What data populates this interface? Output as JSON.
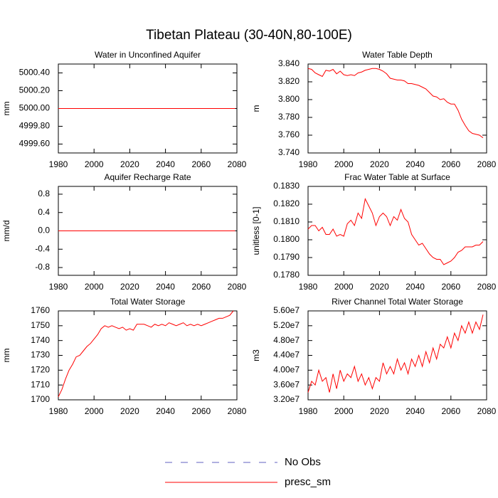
{
  "title": "Tibetan Plateau (30-40N,80-100E)",
  "legend": [
    {
      "name": "No Obs",
      "color": "#6060c0",
      "dash": true
    },
    {
      "name": "presc_sm",
      "color": "#ff0000",
      "dash": false
    }
  ],
  "chart_data": [
    {
      "type": "line",
      "title": "Water in Unconfined Aquifer",
      "y_label": "mm",
      "color": "#ff0000",
      "x": [
        1980,
        2079
      ],
      "values": [
        5000.0,
        5000.0
      ],
      "xlim": [
        1980,
        2080
      ],
      "xticks": [
        1980,
        2000,
        2020,
        2040,
        2060,
        2080
      ],
      "ylim": [
        4999.5,
        5000.5
      ],
      "yticks": [
        {
          "value": 4999.6,
          "label": "4999.60"
        },
        {
          "value": 4999.8,
          "label": "4999.80"
        },
        {
          "value": 5000.0,
          "label": "5000.00"
        },
        {
          "value": 5000.2,
          "label": "5000.20"
        },
        {
          "value": 5000.4,
          "label": "5000.40"
        }
      ]
    },
    {
      "type": "line",
      "title": "Water Table Depth",
      "y_label": "m",
      "color": "#ff0000",
      "x": [
        1980,
        1982,
        1984,
        1986,
        1988,
        1990,
        1992,
        1994,
        1996,
        1998,
        2000,
        2002,
        2004,
        2006,
        2008,
        2010,
        2012,
        2014,
        2016,
        2018,
        2020,
        2022,
        2024,
        2026,
        2028,
        2030,
        2032,
        2034,
        2036,
        2038,
        2040,
        2042,
        2044,
        2046,
        2048,
        2050,
        2052,
        2054,
        2056,
        2058,
        2060,
        2062,
        2064,
        2066,
        2068,
        2070,
        2072,
        2074,
        2076,
        2078
      ],
      "values": [
        3.835,
        3.834,
        3.83,
        3.828,
        3.826,
        3.833,
        3.832,
        3.834,
        3.829,
        3.832,
        3.828,
        3.827,
        3.828,
        3.827,
        3.83,
        3.831,
        3.833,
        3.834,
        3.835,
        3.835,
        3.834,
        3.832,
        3.829,
        3.824,
        3.823,
        3.822,
        3.822,
        3.821,
        3.818,
        3.818,
        3.817,
        3.816,
        3.814,
        3.812,
        3.808,
        3.804,
        3.803,
        3.8,
        3.801,
        3.797,
        3.795,
        3.795,
        3.788,
        3.778,
        3.771,
        3.765,
        3.762,
        3.761,
        3.76,
        3.757
      ],
      "xlim": [
        1980,
        2080
      ],
      "xticks": [
        1980,
        2000,
        2020,
        2040,
        2060,
        2080
      ],
      "ylim": [
        3.74,
        3.84
      ],
      "yticks": [
        {
          "value": 3.74,
          "label": "3.740"
        },
        {
          "value": 3.76,
          "label": "3.760"
        },
        {
          "value": 3.78,
          "label": "3.780"
        },
        {
          "value": 3.8,
          "label": "3.800"
        },
        {
          "value": 3.82,
          "label": "3.820"
        },
        {
          "value": 3.84,
          "label": "3.840"
        }
      ]
    },
    {
      "type": "line",
      "title": "Aquifer Recharge Rate",
      "y_label": "mm/d",
      "color": "#ff0000",
      "x": [
        1980,
        2079
      ],
      "values": [
        0,
        0
      ],
      "xlim": [
        1980,
        2080
      ],
      "xticks": [
        1980,
        2000,
        2020,
        2040,
        2060,
        2080
      ],
      "ylim": [
        -0.97,
        0.97
      ],
      "yticks": [
        -0.8,
        -0.4,
        {
          "value": 0,
          "label": "0.0"
        },
        0.4,
        0.8
      ]
    },
    {
      "type": "line",
      "title": "Frac Water Table at Surface",
      "y_label": "unitless [0-1]",
      "color": "#ff0000",
      "x": [
        1980,
        1982,
        1984,
        1986,
        1988,
        1990,
        1992,
        1994,
        1996,
        1998,
        2000,
        2002,
        2004,
        2006,
        2008,
        2010,
        2012,
        2014,
        2016,
        2018,
        2020,
        2022,
        2024,
        2026,
        2028,
        2030,
        2032,
        2034,
        2036,
        2038,
        2040,
        2042,
        2044,
        2046,
        2048,
        2050,
        2052,
        2054,
        2056,
        2058,
        2060,
        2062,
        2064,
        2066,
        2068,
        2070,
        2072,
        2074,
        2076,
        2078
      ],
      "values": [
        0.1806,
        0.1808,
        0.1808,
        0.1805,
        0.1807,
        0.1803,
        0.1803,
        0.1806,
        0.1802,
        0.1803,
        0.1802,
        0.1809,
        0.1811,
        0.1808,
        0.1815,
        0.1812,
        0.1823,
        0.1819,
        0.1815,
        0.1808,
        0.1813,
        0.1815,
        0.1813,
        0.1808,
        0.1813,
        0.1811,
        0.1817,
        0.1812,
        0.181,
        0.1803,
        0.18,
        0.1797,
        0.1798,
        0.1795,
        0.1792,
        0.179,
        0.1789,
        0.1789,
        0.1786,
        0.1787,
        0.1788,
        0.179,
        0.1793,
        0.1794,
        0.1796,
        0.1796,
        0.1796,
        0.1797,
        0.1797,
        0.1799
      ],
      "xlim": [
        1980,
        2080
      ],
      "xticks": [
        1980,
        2000,
        2020,
        2040,
        2060,
        2080
      ],
      "ylim": [
        0.178,
        0.183
      ],
      "yticks": [
        {
          "value": 0.178,
          "label": "0.1780"
        },
        {
          "value": 0.179,
          "label": "0.1790"
        },
        {
          "value": 0.18,
          "label": "0.1800"
        },
        {
          "value": 0.181,
          "label": "0.1810"
        },
        {
          "value": 0.182,
          "label": "0.1820"
        },
        {
          "value": 0.183,
          "label": "0.1830"
        }
      ]
    },
    {
      "type": "line",
      "title": "Total Water Storage",
      "y_label": "mm",
      "color": "#ff0000",
      "x": [
        1980,
        1982,
        1984,
        1986,
        1988,
        1990,
        1992,
        1994,
        1996,
        1998,
        2000,
        2002,
        2004,
        2006,
        2008,
        2010,
        2012,
        2014,
        2016,
        2018,
        2020,
        2022,
        2024,
        2026,
        2028,
        2030,
        2032,
        2034,
        2036,
        2038,
        2040,
        2042,
        2044,
        2046,
        2048,
        2050,
        2052,
        2054,
        2056,
        2058,
        2060,
        2062,
        2064,
        2066,
        2068,
        2070,
        2072,
        2074,
        2076,
        2078
      ],
      "values": [
        1702,
        1707,
        1714,
        1720,
        1724,
        1729,
        1730,
        1733,
        1736,
        1738,
        1741,
        1744,
        1748,
        1750,
        1749,
        1750,
        1749,
        1748,
        1749,
        1747,
        1748,
        1747,
        1751,
        1751,
        1751,
        1750,
        1749,
        1751,
        1750,
        1751,
        1750,
        1752,
        1751,
        1750,
        1751,
        1752,
        1750,
        1751,
        1750,
        1751,
        1750,
        1751,
        1752,
        1753,
        1754,
        1755,
        1755,
        1756,
        1757,
        1760
      ],
      "xlim": [
        1980,
        2080
      ],
      "xticks": [
        1980,
        2000,
        2020,
        2040,
        2060,
        2080
      ],
      "ylim": [
        1700,
        1760
      ],
      "yticks": [
        1700,
        1710,
        1720,
        1730,
        1740,
        1750,
        1760
      ]
    },
    {
      "type": "line",
      "title": "River Channel Total Water Storage",
      "y_label": "m3",
      "color": "#ff0000",
      "x": [
        1980,
        1982,
        1984,
        1986,
        1988,
        1990,
        1992,
        1994,
        1996,
        1998,
        2000,
        2002,
        2004,
        2006,
        2008,
        2010,
        2012,
        2014,
        2016,
        2018,
        2020,
        2022,
        2024,
        2026,
        2028,
        2030,
        2032,
        2034,
        2036,
        2038,
        2040,
        2042,
        2044,
        2046,
        2048,
        2050,
        2052,
        2054,
        2056,
        2058,
        2060,
        2062,
        2064,
        2066,
        2068,
        2070,
        2072,
        2074,
        2076,
        2078
      ],
      "values": [
        34000000,
        37000000,
        36000000,
        40000000,
        37000000,
        38000000,
        34000000,
        39000000,
        35000000,
        40000000,
        37000000,
        39000000,
        38000000,
        41000000,
        37000000,
        39000000,
        36000000,
        38000000,
        35000000,
        38000000,
        37000000,
        42000000,
        39000000,
        41000000,
        39000000,
        43000000,
        40000000,
        42000000,
        39000000,
        43000000,
        41000000,
        44000000,
        41000000,
        45000000,
        42000000,
        46000000,
        43000000,
        47000000,
        46000000,
        49000000,
        46000000,
        50000000,
        48000000,
        52000000,
        50000000,
        53000000,
        50000000,
        53000000,
        51000000,
        55000000
      ],
      "xlim": [
        1980,
        2080
      ],
      "xticks": [
        1980,
        2000,
        2020,
        2040,
        2060,
        2080
      ],
      "ylim": [
        32000000,
        56000000
      ],
      "yticks": [
        {
          "value": 32000000,
          "label": "3.20e7"
        },
        {
          "value": 36000000,
          "label": "3.60e7"
        },
        {
          "value": 40000000,
          "label": "4.00e7"
        },
        {
          "value": 44000000,
          "label": "4.40e7"
        },
        {
          "value": 48000000,
          "label": "4.80e7"
        },
        {
          "value": 52000000,
          "label": "5.20e7"
        },
        {
          "value": 56000000,
          "label": "5.60e7"
        }
      ]
    }
  ]
}
